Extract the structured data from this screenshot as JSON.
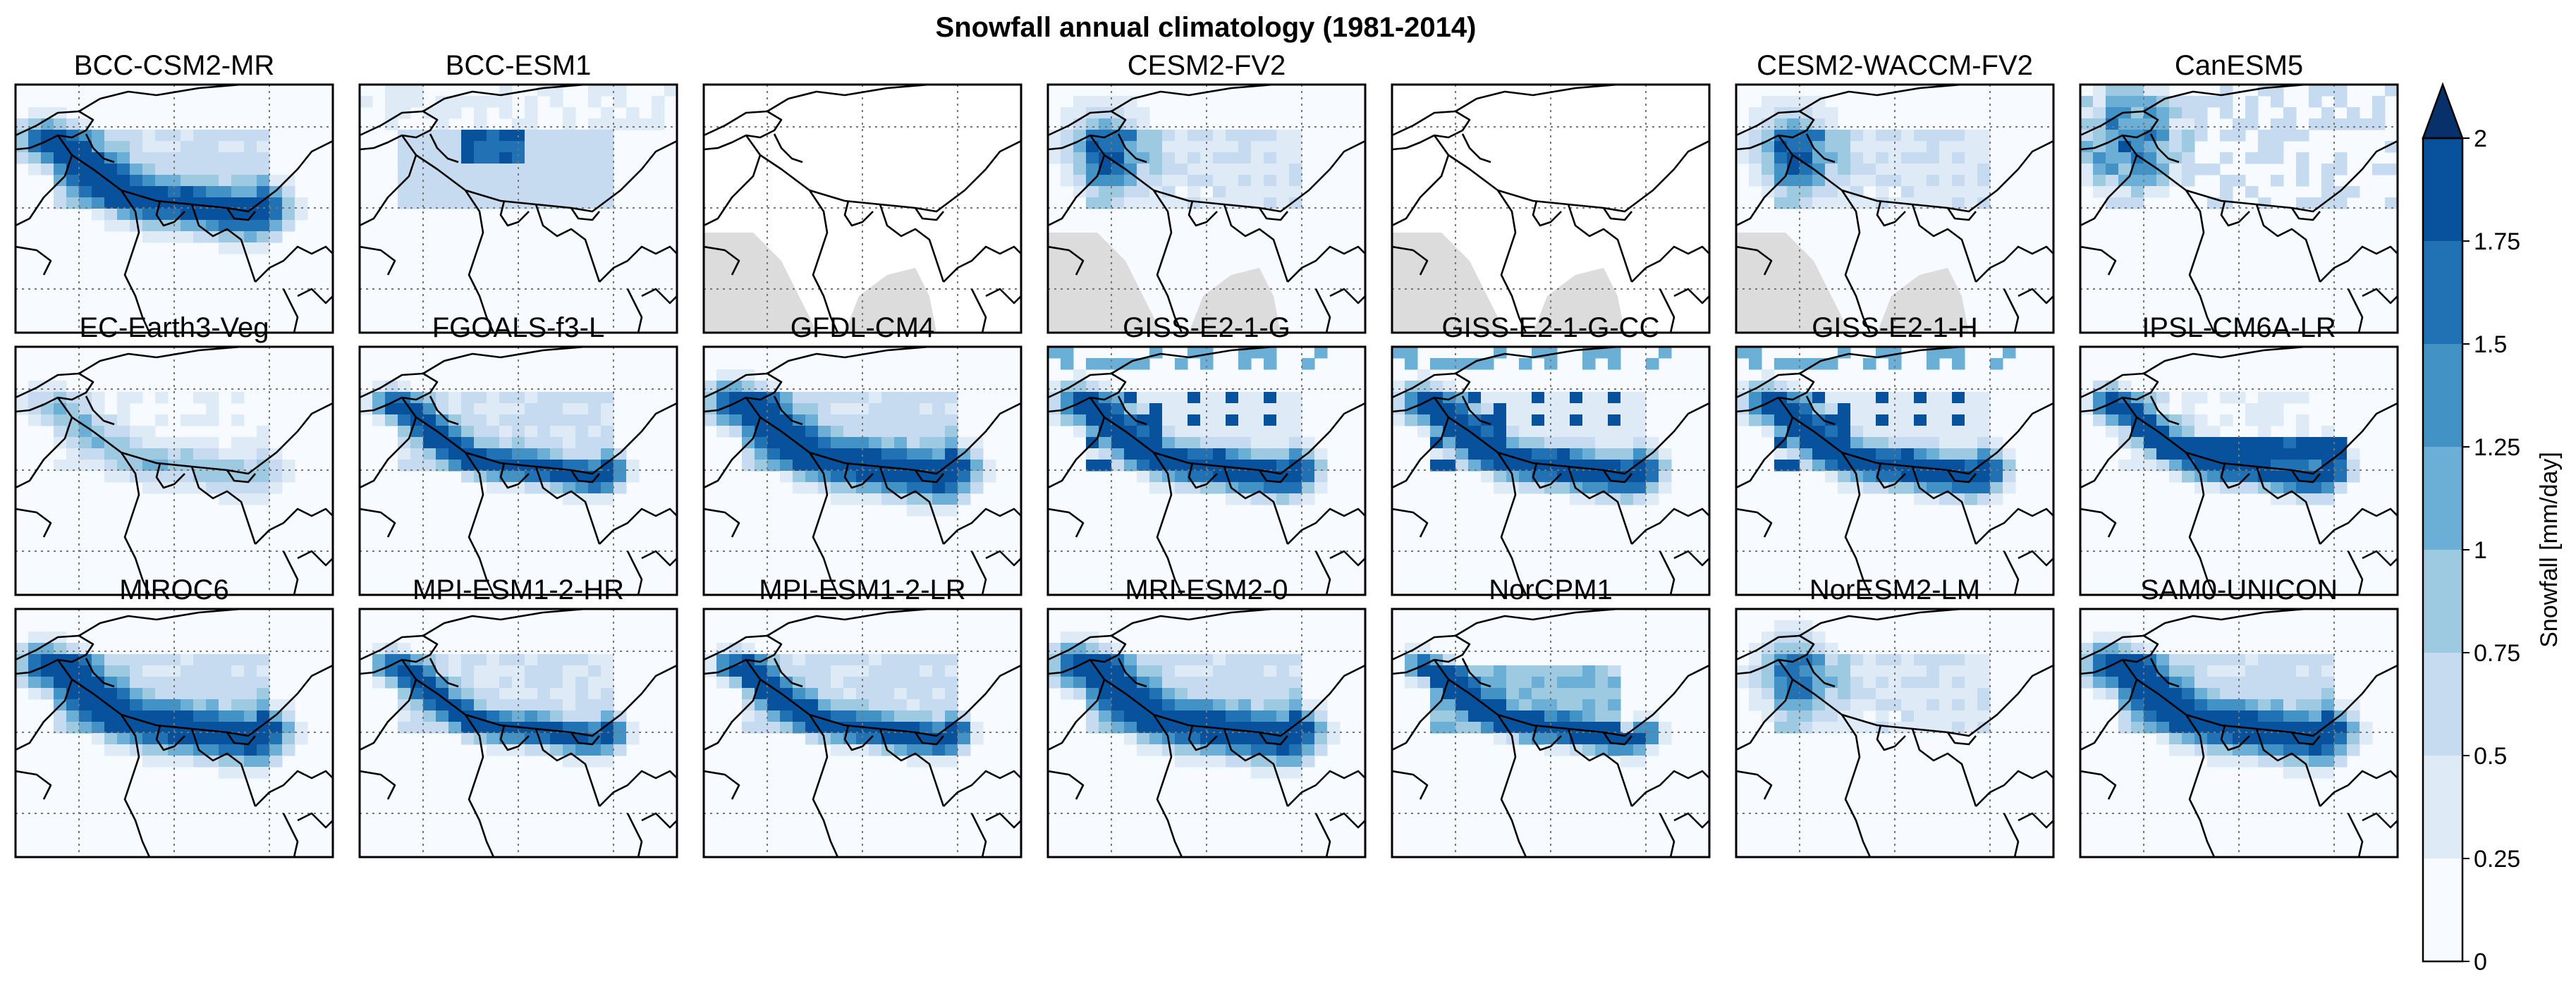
{
  "chart_data": {
    "type": "heatmap",
    "title": "Snowfall annual climatology (1981-2014)",
    "colorbar": {
      "label": "Snowfall [mm/day]",
      "ticks": [
        "0",
        "0.25",
        "0.5",
        "0.75",
        "1",
        "1.25",
        "1.5",
        "1.75",
        "2"
      ],
      "levels": [
        0,
        0.25,
        0.5,
        0.75,
        1,
        1.25,
        1.5,
        1.75,
        2
      ],
      "extend": "max",
      "colors": [
        "#f7fbff",
        "#deebf7",
        "#c6dbef",
        "#9ecae1",
        "#6baed6",
        "#4292c6",
        "#2171b5",
        "#08519c",
        "#08306b"
      ]
    },
    "grid": true,
    "models": [
      {
        "name": "BCC-CSM2-MR",
        "peak": 1.9,
        "pattern": "band",
        "missing_ocean": false
      },
      {
        "name": "BCC-ESM1",
        "peak": 2.0,
        "pattern": "block",
        "missing_ocean": false
      },
      {
        "name": "",
        "peak": 0,
        "pattern": "empty",
        "missing_ocean": true
      },
      {
        "name": "CESM2-FV2",
        "peak": 1.5,
        "pattern": "west",
        "missing_ocean": true
      },
      {
        "name": "",
        "peak": 0,
        "pattern": "empty",
        "missing_ocean": true
      },
      {
        "name": "CESM2-WACCM-FV2",
        "peak": 1.5,
        "pattern": "west",
        "missing_ocean": true
      },
      {
        "name": "CanESM5",
        "peak": 1.4,
        "pattern": "coarse",
        "missing_ocean": false
      },
      {
        "name": "EC-Earth3-Veg",
        "peak": 0.9,
        "pattern": "faint",
        "missing_ocean": false
      },
      {
        "name": "FGOALS-f3-L",
        "peak": 1.9,
        "pattern": "arc",
        "missing_ocean": false
      },
      {
        "name": "GFDL-CM4",
        "peak": 2.0,
        "pattern": "band",
        "missing_ocean": false
      },
      {
        "name": "GISS-E2-1-G",
        "peak": 2.0,
        "pattern": "spotty",
        "missing_ocean": false
      },
      {
        "name": "GISS-E2-1-G-CC",
        "peak": 2.0,
        "pattern": "spotty",
        "missing_ocean": false
      },
      {
        "name": "GISS-E2-1-H",
        "peak": 2.0,
        "pattern": "spotty",
        "missing_ocean": false
      },
      {
        "name": "IPSL-CM6A-LR",
        "peak": 2.0,
        "pattern": "ipsl",
        "missing_ocean": false
      },
      {
        "name": "MIROC6",
        "peak": 2.0,
        "pattern": "band",
        "missing_ocean": false
      },
      {
        "name": "MPI-ESM1-2-HR",
        "peak": 1.8,
        "pattern": "arc",
        "missing_ocean": false
      },
      {
        "name": "MPI-ESM1-2-LR",
        "peak": 2.0,
        "pattern": "arc",
        "missing_ocean": false
      },
      {
        "name": "MRI-ESM2-0",
        "peak": 2.0,
        "pattern": "band",
        "missing_ocean": false
      },
      {
        "name": "NorCPM1",
        "peak": 2.0,
        "pattern": "norcpm",
        "missing_ocean": false
      },
      {
        "name": "NorESM2-LM",
        "peak": 1.3,
        "pattern": "west",
        "missing_ocean": false
      },
      {
        "name": "SAM0-UNICON",
        "peak": 2.0,
        "pattern": "band",
        "missing_ocean": false
      }
    ]
  }
}
